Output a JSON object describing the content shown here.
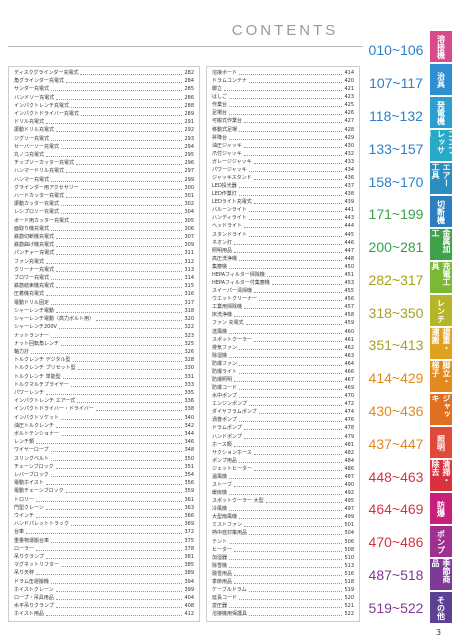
{
  "header": {
    "title": "CONTENTS"
  },
  "columns": [
    {
      "entries": [
        {
          "name": "ディスクグラインダー充電式",
          "page": "282"
        },
        {
          "name": "角グラインダー充電式",
          "page": "284"
        },
        {
          "name": "サンダー充電式",
          "page": "285"
        },
        {
          "name": "バンドソー充電式",
          "page": "286"
        },
        {
          "name": "インパクトレンチ充電式",
          "page": "288"
        },
        {
          "name": "インパクトドライバー充電式",
          "page": "289"
        },
        {
          "name": "ドリル充電式",
          "page": "291"
        },
        {
          "name": "振動ドリル充電式",
          "page": "292"
        },
        {
          "name": "ジグソー充電式",
          "page": "293"
        },
        {
          "name": "セーバーソー充電式",
          "page": "294"
        },
        {
          "name": "丸ノコ充電式",
          "page": "295"
        },
        {
          "name": "チップソーカッター充電式",
          "page": "296"
        },
        {
          "name": "ハンマードリル充電式",
          "page": "297"
        },
        {
          "name": "ハンマー充電式",
          "page": "299"
        },
        {
          "name": "グラインダー用アクセサリー",
          "page": "300"
        },
        {
          "name": "ハードカッター充電式",
          "page": "301"
        },
        {
          "name": "振動カッター充電式",
          "page": "302"
        },
        {
          "name": "レシプロソー充電式",
          "page": "304"
        },
        {
          "name": "ボード用カッター充電式",
          "page": "305"
        },
        {
          "name": "面取り機充電式",
          "page": "306"
        },
        {
          "name": "鉄筋切断機充電式",
          "page": "307"
        },
        {
          "name": "鉄筋曲げ機充電式",
          "page": "309"
        },
        {
          "name": "パンチャー充電式",
          "page": "311"
        },
        {
          "name": "ファン充電式",
          "page": "312"
        },
        {
          "name": "クリーナー充電式",
          "page": "313"
        },
        {
          "name": "ブロワー充電式",
          "page": "314"
        },
        {
          "name": "鉄筋結束機充電式",
          "page": "315"
        },
        {
          "name": "圧着機充電式",
          "page": "316"
        },
        {
          "name": "電動ドリル固定",
          "page": "317"
        },
        {
          "name": "シャーレンチ電動",
          "page": "318"
        },
        {
          "name": "シャーレンチ電動（高力ボルト用）",
          "page": "320"
        },
        {
          "name": "シャーレンチ200V",
          "page": "322"
        },
        {
          "name": "ナットランナー",
          "page": "323"
        },
        {
          "name": "ナット回転角レンチ",
          "page": "325"
        },
        {
          "name": "軸力計",
          "page": "326"
        },
        {
          "name": "トルクレンチ デジタル型",
          "page": "328"
        },
        {
          "name": "トルクレンチ プリセット型",
          "page": "330"
        },
        {
          "name": "トルクレンチ 単能型",
          "page": "331"
        },
        {
          "name": "トルクマルチプライヤー",
          "page": "333"
        },
        {
          "name": "パワーレンチ",
          "page": "335"
        },
        {
          "name": "インパクトレンチ エアー式",
          "page": "336"
        },
        {
          "name": "インパクトドライバー・ドライバー",
          "page": "338"
        },
        {
          "name": "インパクトソケット",
          "page": "340"
        },
        {
          "name": "油圧トルクレンチ",
          "page": "342"
        },
        {
          "name": "ボルトテンショナー",
          "page": "344"
        },
        {
          "name": "レンチ類",
          "page": "346"
        },
        {
          "name": "ワイヤーロープ",
          "page": "348"
        },
        {
          "name": "スリングベルト",
          "page": "350"
        },
        {
          "name": "チェーンブロック",
          "page": "351"
        },
        {
          "name": "レバーブロック",
          "page": "354"
        },
        {
          "name": "電動ホイスト",
          "page": "356"
        },
        {
          "name": "電動チェーンブロック",
          "page": "359"
        },
        {
          "name": "トロリー",
          "page": "361"
        },
        {
          "name": "門型クレーン",
          "page": "363"
        },
        {
          "name": "ウインチ",
          "page": "366"
        },
        {
          "name": "ハンドパレットトラック",
          "page": "369"
        },
        {
          "name": "台車",
          "page": "372"
        },
        {
          "name": "重量物運搬台車",
          "page": "375"
        },
        {
          "name": "ローラー",
          "page": "378"
        },
        {
          "name": "吊りクランプ",
          "page": "381"
        },
        {
          "name": "マグネットリフター",
          "page": "385"
        },
        {
          "name": "吊り天秤",
          "page": "389"
        },
        {
          "name": "ドラム缶運搬機",
          "page": "394"
        },
        {
          "name": "ホイストクレーン",
          "page": "399"
        },
        {
          "name": "ロープ・吊具用品",
          "page": "404"
        },
        {
          "name": "水平吊りクランプ",
          "page": "408"
        },
        {
          "name": "ホイスト用品",
          "page": "412"
        }
      ]
    },
    {
      "entries": [
        {
          "name": "溶接ボード",
          "page": "414"
        },
        {
          "name": "ドラムコンテナ",
          "page": "420"
        },
        {
          "name": "脚立",
          "page": "421"
        },
        {
          "name": "はしご",
          "page": "423"
        },
        {
          "name": "作業台",
          "page": "425"
        },
        {
          "name": "足場台",
          "page": "426"
        },
        {
          "name": "可搬式作業台",
          "page": "427"
        },
        {
          "name": "移動式足場",
          "page": "428"
        },
        {
          "name": "昇降台",
          "page": "429"
        },
        {
          "name": "油圧ジャッキ",
          "page": "430"
        },
        {
          "name": "爪付ジャッキ",
          "page": "432"
        },
        {
          "name": "ガレージジャッキ",
          "page": "433"
        },
        {
          "name": "パワージャッキ",
          "page": "434"
        },
        {
          "name": "ジャッキスタンド",
          "page": "436"
        },
        {
          "name": "LED投光器",
          "page": "437"
        },
        {
          "name": "LED作業灯",
          "page": "438"
        },
        {
          "name": "LEDライト充電式",
          "page": "439"
        },
        {
          "name": "バルーンライト",
          "page": "441"
        },
        {
          "name": "ハンディライト",
          "page": "443"
        },
        {
          "name": "ヘッドライト",
          "page": "444"
        },
        {
          "name": "スタンドライト",
          "page": "445"
        },
        {
          "name": "ネオン灯",
          "page": "446"
        },
        {
          "name": "照明用品",
          "page": "447"
        },
        {
          "name": "高圧洗浄機",
          "page": "448"
        },
        {
          "name": "集塵機",
          "page": "450"
        },
        {
          "name": "HEPAフィルター掃除機",
          "page": "451"
        },
        {
          "name": "HEPAフィルター付集塵機",
          "page": "453"
        },
        {
          "name": "スイーパー清掃機",
          "page": "455"
        },
        {
          "name": "ウエットクリーナー",
          "page": "456"
        },
        {
          "name": "工業用掃除機",
          "page": "457"
        },
        {
          "name": "床洗浄機",
          "page": "458"
        },
        {
          "name": "ファン 充電式",
          "page": "459"
        },
        {
          "name": "送風機",
          "page": "460"
        },
        {
          "name": "スポットクーラー",
          "page": "461"
        },
        {
          "name": "排気ファン",
          "page": "462"
        },
        {
          "name": "除湿機",
          "page": "463"
        },
        {
          "name": "防爆ファン",
          "page": "464"
        },
        {
          "name": "防爆ライト",
          "page": "466"
        },
        {
          "name": "防爆照明",
          "page": "467"
        },
        {
          "name": "防爆コード",
          "page": "469"
        },
        {
          "name": "水中ポンプ",
          "page": "470"
        },
        {
          "name": "エンジンポンプ",
          "page": "472"
        },
        {
          "name": "ダイヤフラムポンプ",
          "page": "474"
        },
        {
          "name": "渦巻ポンプ",
          "page": "476"
        },
        {
          "name": "ドラムポンプ",
          "page": "478"
        },
        {
          "name": "ハンドポンプ",
          "page": "479"
        },
        {
          "name": "ホース類",
          "page": "481"
        },
        {
          "name": "サクションホース",
          "page": "482"
        },
        {
          "name": "ポンプ用品",
          "page": "484"
        },
        {
          "name": "ジェットヒーター",
          "page": "486"
        },
        {
          "name": "温風機",
          "page": "487"
        },
        {
          "name": "ストーブ",
          "page": "490"
        },
        {
          "name": "暖房機",
          "page": "492"
        },
        {
          "name": "スポットクーラー 大型",
          "page": "495"
        },
        {
          "name": "冷風機",
          "page": "497"
        },
        {
          "name": "大型扇風機",
          "page": "499"
        },
        {
          "name": "ミストファン",
          "page": "501"
        },
        {
          "name": "熱中症対策用品",
          "page": "504"
        },
        {
          "name": "テント",
          "page": "506"
        },
        {
          "name": "ヒーター",
          "page": "508"
        },
        {
          "name": "加湿器",
          "page": "510"
        },
        {
          "name": "除雪機",
          "page": "513"
        },
        {
          "name": "融雪用品",
          "page": "516"
        },
        {
          "name": "季節用品",
          "page": "518"
        },
        {
          "name": "ケーブルドラム",
          "page": "519"
        },
        {
          "name": "延長コード",
          "page": "520"
        },
        {
          "name": "変圧器",
          "page": "521"
        },
        {
          "name": "溶接機用保護具",
          "page": "522"
        }
      ]
    }
  ],
  "index": [
    {
      "range": "010~106",
      "tab": "溶接機",
      "color": "#d94a8c",
      "range_color": "#2f7fc8"
    },
    {
      "range": "107~117",
      "tab": "治具",
      "color": "#2f8fd0",
      "range_color": "#2f7fc8"
    },
    {
      "range": "118~132",
      "tab": "発電機",
      "color": "#2a9fd0",
      "range_color": "#2f7fc8"
    },
    {
      "range": "133~157",
      "tab": "コンプレッサー",
      "color": "#27a9c7",
      "range_color": "#2f7fc8"
    },
    {
      "range": "158~170",
      "tab": "エアー工具",
      "color": "#2a8fc0",
      "range_color": "#2f7fc8"
    },
    {
      "range": "171~199",
      "tab": "切断機",
      "color": "#2b7fc0",
      "range_color": "#3aa04a"
    },
    {
      "range": "200~281",
      "tab": "金属加工",
      "color": "#3fa14a",
      "range_color": "#3aa04a"
    },
    {
      "range": "282~317",
      "tab": "充電工具",
      "color": "#7ab935",
      "range_color": "#a8a020"
    },
    {
      "range": "318~350",
      "tab": "レンチ",
      "color": "#b5b52a",
      "range_color": "#a8a020"
    },
    {
      "range": "351~413",
      "tab": "揚重・運搬",
      "color": "#e0a020",
      "range_color": "#a8a020"
    },
    {
      "range": "414~429",
      "tab": "脚立・梯子",
      "color": "#e38a1e",
      "range_color": "#e08a1e"
    },
    {
      "range": "430~436",
      "tab": "ジャッキ",
      "color": "#e0701f",
      "range_color": "#e08a1e"
    },
    {
      "range": "437~447",
      "tab": "照明",
      "color": "#e04a3a",
      "range_color": "#e08a1e"
    },
    {
      "range": "448~463",
      "tab": "清掃・除去",
      "color": "#d8323f",
      "range_color": "#d8323f"
    },
    {
      "range": "464~469",
      "tab": "防爆",
      "color": "#c8207a",
      "range_color": "#d8323f"
    },
    {
      "range": "470~486",
      "tab": "ポンプ",
      "color": "#a0308f",
      "range_color": "#d8323f"
    },
    {
      "range": "487~518",
      "tab": "季節商品",
      "color": "#7d3a96",
      "range_color": "#7d3a96"
    },
    {
      "range": "519~522",
      "tab": "その他",
      "color": "#5e3f96",
      "range_color": "#7d3a96"
    }
  ],
  "page_number": "3"
}
